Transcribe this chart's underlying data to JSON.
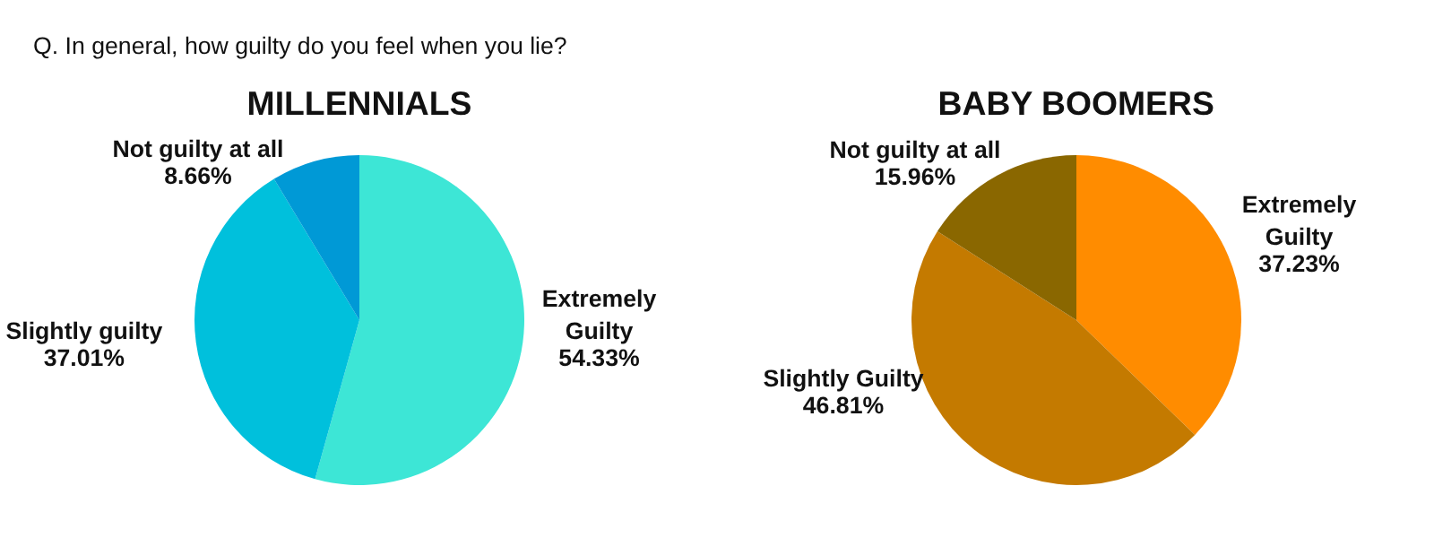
{
  "chart_data": [
    {
      "type": "pie",
      "title": "MILLENNIALS",
      "annotations": [
        "Q. In general, how guilty do you feel when you lie?"
      ],
      "categories": [
        "Extremely Guilty",
        "Slightly guilty",
        "Not guilty at all"
      ],
      "values": [
        54.33,
        37.01,
        8.66
      ],
      "value_labels": [
        "54.33%",
        "37.01%",
        "8.66%"
      ],
      "colors": [
        "#3de6d6",
        "#00c0dc",
        "#0099d6"
      ]
    },
    {
      "type": "pie",
      "title": "BABY BOOMERS",
      "categories": [
        "Extremely Guilty",
        "Slightly Guilty",
        "Not guilty at all"
      ],
      "values": [
        37.23,
        46.81,
        15.96
      ],
      "value_labels": [
        "37.23%",
        "46.81%",
        "15.96%"
      ],
      "colors": [
        "#ff8c00",
        "#c47a00",
        "#8a6700"
      ]
    }
  ]
}
